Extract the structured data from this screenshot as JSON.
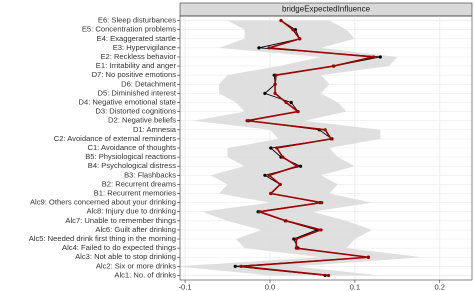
{
  "chart_data": {
    "type": "line",
    "title": "bridgeExpectedInfluence",
    "categories": [
      "E6: Sleep disturbances",
      "E5: Concentration problems",
      "E4: Exaggerated startle",
      "E3: Hypervigilance",
      "E2: Reckless behavior",
      "E1: Irritability and anger",
      "D7: No positive emotions",
      "D6: Detachment",
      "D5: Diminished interest",
      "D4: Negative emotional state",
      "D3: Distorted cognitions",
      "D2: Negative beliefs",
      "D1: Amnesia",
      "C2: Avoidance of external reminders",
      "C1: Avoidance of thoughts",
      "B5: Physiological reactions",
      "B4: Psychological distress",
      "B3: Flashbacks",
      "B2: Recurrent dreams",
      "B1: Recurrent memories",
      "Alc9: Others concerned about your drinking",
      "Alc8: Injury due to drinking",
      "Alc7: Unable to remember things",
      "Alc6: Guilt after drinking",
      "Alc5: Needed drink first thing in the morning",
      "Alc4: Failed to do expected things",
      "Alc3: Not able to stop drinking",
      "Alc2: Six or more drinks",
      "Alc1: No. of drinks"
    ],
    "series": [
      {
        "color": "#000000",
        "values": [
          0.013,
          0.03,
          0.035,
          -0.013,
          0.13,
          0.075,
          0.005,
          0.006,
          -0.006,
          0.025,
          0.033,
          -0.025,
          0.058,
          0.073,
          0.001,
          0.013,
          0.036,
          -0.006,
          0.012,
          0.001,
          0.059,
          -0.014,
          0.018,
          0.055,
          0.028,
          0.033,
          0.116,
          -0.041,
          0.065
        ]
      },
      {
        "color": "#9b0000",
        "values": [
          0.013,
          0.027,
          0.035,
          -0.001,
          0.122,
          0.075,
          0.007,
          0.006,
          0.006,
          0.019,
          0.033,
          -0.027,
          0.065,
          0.072,
          0.008,
          0.015,
          0.032,
          -0.001,
          0.012,
          0.001,
          0.061,
          -0.012,
          0.019,
          0.06,
          0.031,
          0.031,
          0.116,
          -0.034,
          0.069
        ]
      }
    ],
    "ribbon": {
      "color": "#d9d9d9",
      "lower": [
        -0.05,
        -0.03,
        -0.03,
        -0.06,
        0.06,
        0.01,
        -0.05,
        -0.06,
        -0.06,
        -0.04,
        -0.03,
        -0.09,
        0.0,
        0.01,
        -0.05,
        -0.05,
        -0.03,
        -0.07,
        -0.05,
        -0.06,
        0.0,
        -0.08,
        -0.05,
        -0.01,
        -0.04,
        -0.03,
        0.06,
        -0.11,
        0.0
      ],
      "upper": [
        0.07,
        0.09,
        0.1,
        0.06,
        0.15,
        0.14,
        0.06,
        0.07,
        0.06,
        0.08,
        0.09,
        0.04,
        0.13,
        0.13,
        0.07,
        0.08,
        0.1,
        0.06,
        0.08,
        0.07,
        0.12,
        0.05,
        0.09,
        0.12,
        0.1,
        0.09,
        0.18,
        0.03,
        0.13
      ]
    },
    "xlim": [
      -0.106,
      0.238
    ],
    "xticks": [
      -0.1,
      {
        "value": 0.0,
        "label": "0.0"
      },
      0.1,
      0.2
    ],
    "grid": true
  }
}
